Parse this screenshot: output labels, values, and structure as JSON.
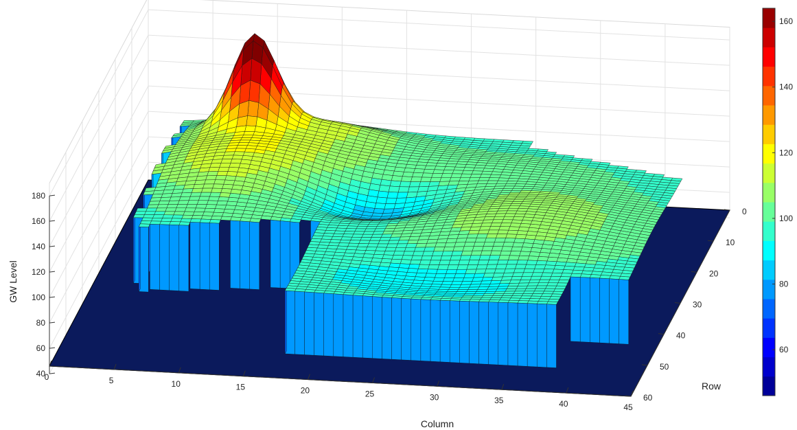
{
  "chart_data": {
    "type": "surface",
    "title": "",
    "xlabel": "Column",
    "ylabel": "Row",
    "zlabel": "GW Level",
    "x_ticks": [
      0,
      5,
      10,
      15,
      20,
      25,
      30,
      35,
      40,
      45
    ],
    "y_ticks": [
      0,
      10,
      20,
      30,
      40,
      50,
      60
    ],
    "z_ticks": [
      40,
      60,
      80,
      100,
      120,
      140,
      160,
      180
    ],
    "xlim": [
      0,
      45
    ],
    "ylim": [
      0,
      60
    ],
    "zlim": [
      40,
      180
    ],
    "floor_value": 46,
    "colormap": "jet",
    "colorbar": {
      "ticks": [
        60,
        80,
        100,
        120,
        140,
        160
      ],
      "range": [
        46,
        164
      ],
      "levels": 20
    },
    "grid": true,
    "surface_features": [
      {
        "name": "peak",
        "column": 9,
        "row": 7,
        "value": 163
      },
      {
        "name": "upper plateau",
        "column": 10,
        "row": 18,
        "value": 118
      },
      {
        "name": "central trough",
        "column": 20,
        "row": 22,
        "value": 90
      },
      {
        "name": "east lobe",
        "column": 33,
        "row": 28,
        "value": 110
      }
    ]
  }
}
